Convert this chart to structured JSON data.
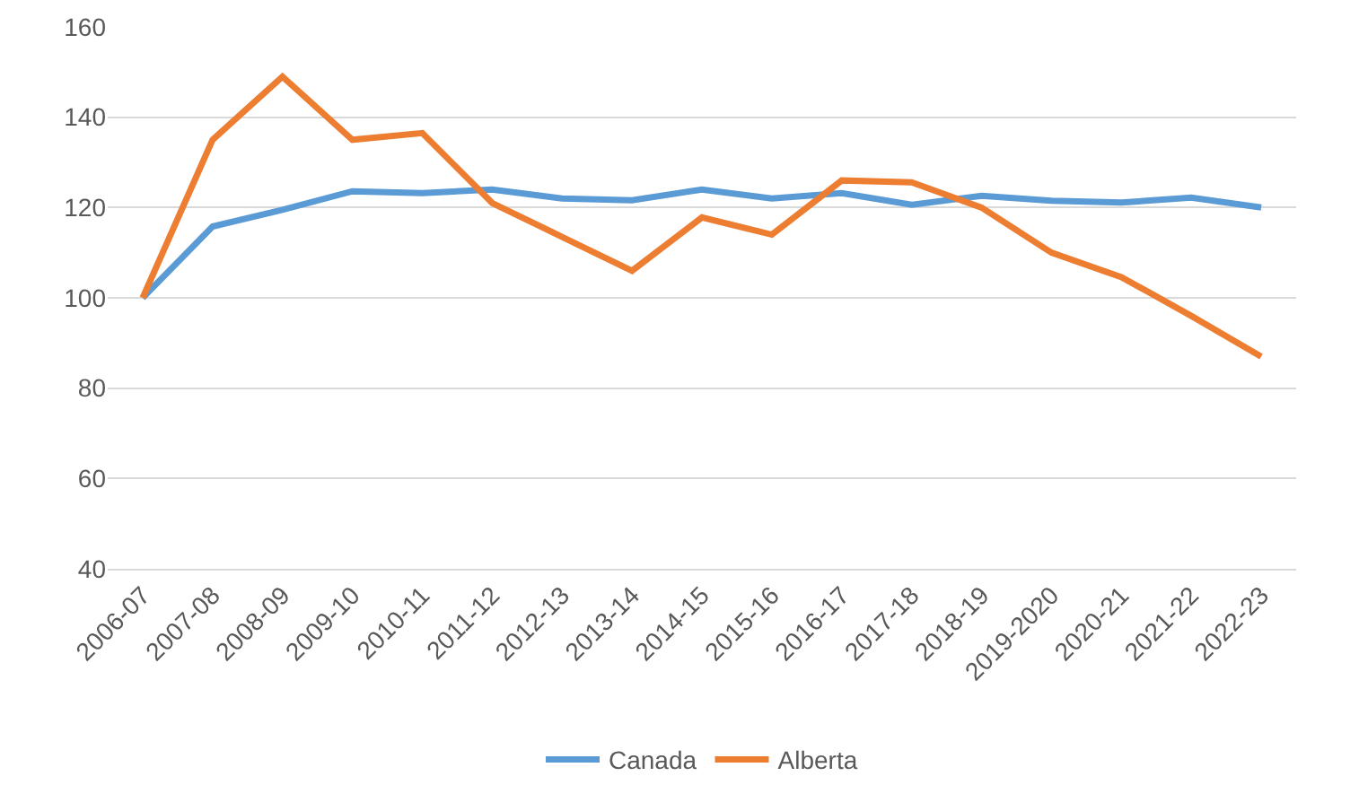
{
  "chart_data": {
    "type": "line",
    "categories": [
      "2006-07",
      "2007-08",
      "2008-09",
      "2009-10",
      "2010-11",
      "2011-12",
      "2012-13",
      "2013-14",
      "2014-15",
      "2015-16",
      "2016-17",
      "2017-18",
      "2018-19",
      "2019-2020",
      "2020-21",
      "2021-22",
      "2022-23"
    ],
    "series": [
      {
        "name": "Canada",
        "color": "#5b9bd5",
        "values": [
          100,
          115.8,
          119.5,
          123.6,
          123.2,
          124,
          122,
          121.6,
          124,
          122,
          123.2,
          120.6,
          122.6,
          121.5,
          121.1,
          122.2,
          120
        ]
      },
      {
        "name": "Alberta",
        "color": "#ed7d31",
        "values": [
          100,
          135,
          149,
          135,
          136.5,
          121,
          113.5,
          106,
          117.8,
          114,
          126,
          125.6,
          120,
          110,
          104.6,
          96,
          87
        ]
      }
    ],
    "ylim": [
      40,
      160
    ],
    "yticks": [
      40,
      60,
      80,
      100,
      120,
      140,
      160
    ],
    "grid": "y",
    "legend": "bottom",
    "marker": "none",
    "line_style": "solid"
  }
}
